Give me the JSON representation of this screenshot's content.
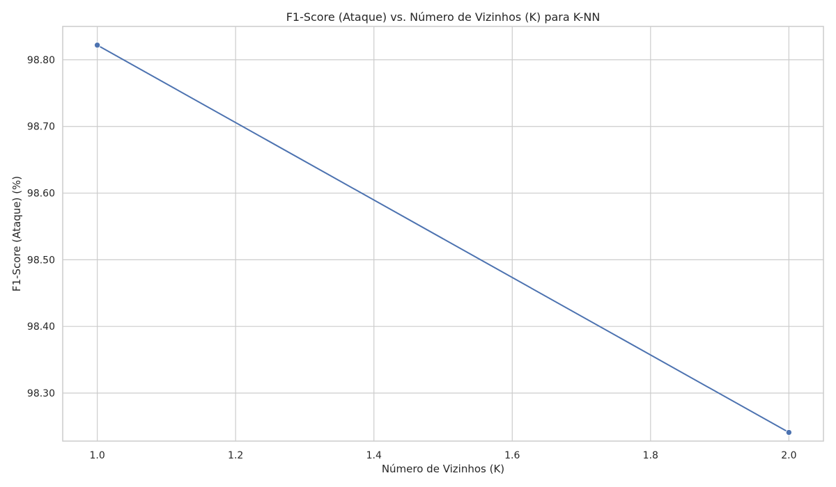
{
  "chart_data": {
    "type": "line",
    "title": "F1-Score (Ataque) vs. Número de Vizinhos (K) para K-NN",
    "xlabel": "Número de Vizinhos (K)",
    "ylabel": "F1-Score (Ataque) (%)",
    "x": [
      1.0,
      2.0
    ],
    "series": [
      {
        "values": [
          98.822,
          98.241
        ],
        "color": "#4c72b0",
        "marker": "circle"
      }
    ],
    "xlim": [
      0.95,
      2.05
    ],
    "ylim": [
      98.228,
      98.85
    ],
    "xticks": [
      1.0,
      1.2,
      1.4,
      1.6,
      1.8,
      2.0
    ],
    "xtick_labels": [
      "1.0",
      "1.2",
      "1.4",
      "1.6",
      "1.8",
      "2.0"
    ],
    "yticks": [
      98.3,
      98.4,
      98.5,
      98.6,
      98.7,
      98.8
    ],
    "ytick_labels": [
      "98.30",
      "98.40",
      "98.50",
      "98.60",
      "98.70",
      "98.80"
    ],
    "grid": true,
    "legend": "none"
  }
}
